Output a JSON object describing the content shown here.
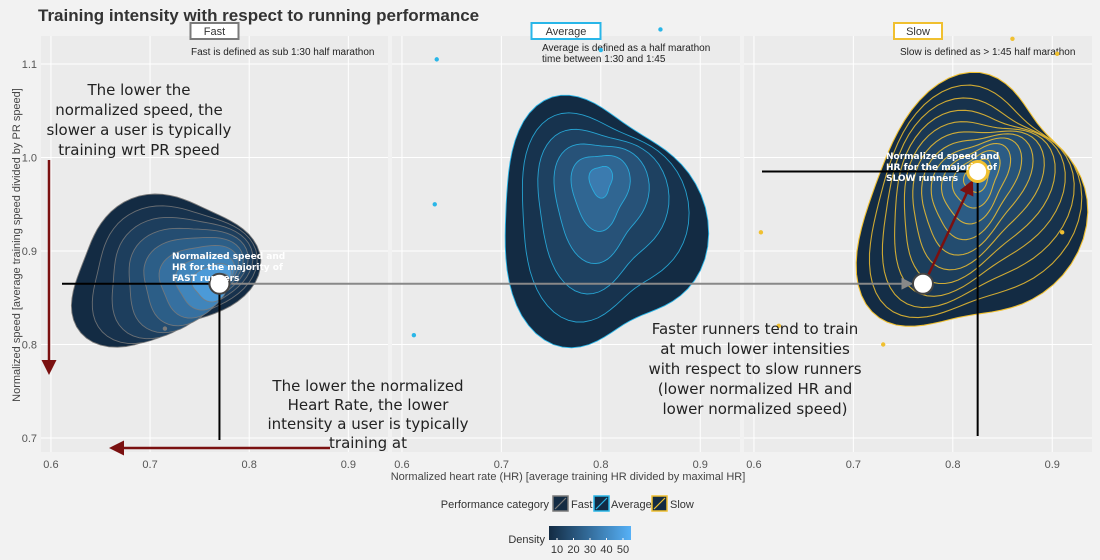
{
  "colors": {
    "fast": "#7a7a7a",
    "average": "#29b6e8",
    "slow": "#f0c030",
    "density_low": "#132b43",
    "density_high": "#56b1f7",
    "arrow_red": "#7a1010",
    "arrow_gray": "#888888",
    "background": "#f2f2f2",
    "grid": "#ffffff"
  },
  "chart_data": {
    "type": "density_contour",
    "title": "Training intensity with respect to running performance",
    "xlabel": "Normalized heart rate (HR) [average training HR divided by maximal HR]",
    "ylabel": "Normalized speed [average training speed divided by PR speed]",
    "facet_xlim": [
      0.59,
      0.94
    ],
    "ylim": [
      0.685,
      1.13
    ],
    "x_ticks": [
      "0.6",
      "0.7",
      "0.8",
      "0.9"
    ],
    "y_ticks": [
      "0.7",
      "0.8",
      "0.9",
      "1.0",
      "1.1"
    ],
    "panels": [
      {
        "name": "Fast",
        "note": "Fast is defined as sub 1:30 half marathon",
        "center": [
          0.71,
          0.88
        ],
        "peak": [
          0.77,
          0.865
        ],
        "radius": [
          0.09,
          0.078
        ],
        "tilt_deg": 22,
        "levels": 9,
        "outliers": [
          [
            0.715,
            0.817
          ]
        ]
      },
      {
        "name": "Average",
        "note_lines": [
          "Average is defined as a half marathon",
          "time between 1:30 and 1:45"
        ],
        "center": [
          0.795,
          0.93
        ],
        "peak": [
          0.8,
          0.975
        ],
        "radius": [
          0.095,
          0.137
        ],
        "tilt_deg": 8,
        "levels": 6,
        "outliers": [
          [
            0.635,
            1.105
          ],
          [
            0.633,
            0.95
          ],
          [
            0.612,
            0.81
          ],
          [
            0.8,
            1.115
          ],
          [
            0.86,
            1.137
          ]
        ]
      },
      {
        "name": "Slow",
        "note": "Slow is defined as > 1:45 half marathon",
        "center": [
          0.815,
          0.945
        ],
        "peak": [
          0.825,
          0.98
        ],
        "radius": [
          0.1,
          0.145
        ],
        "tilt_deg": -28,
        "levels": 11,
        "outliers": [
          [
            0.86,
            1.127
          ],
          [
            0.607,
            0.92
          ],
          [
            0.905,
            1.111
          ],
          [
            0.91,
            0.92
          ],
          [
            0.625,
            0.82
          ],
          [
            0.73,
            0.8
          ]
        ]
      }
    ],
    "legend": {
      "title": "Performance category",
      "entries": [
        "Fast",
        "Average",
        "Slow"
      ],
      "density_title": "Density",
      "density_ticks": [
        "10",
        "20",
        "30",
        "40",
        "50"
      ],
      "position": "bottom"
    }
  },
  "annotations": {
    "speed_note": [
      "The lower the",
      "normalized speed, the",
      "slower a user is typically",
      "training wrt PR speed"
    ],
    "hr_note": [
      "The lower the normalized",
      "Heart Rate, the lower",
      "intensity a user is typically",
      "training at"
    ],
    "faster_note": [
      "Faster runners tend to train",
      "at much lower intensities",
      "with respect to slow runners",
      "(lower normalized HR and",
      "lower normalized speed)"
    ],
    "fast_majority": [
      "Normalized speed and",
      "HR for the majority of",
      "FAST runners"
    ],
    "slow_majority": [
      "Normalized speed and",
      "HR for the majority of",
      "SLOW runners"
    ],
    "fast_point": [
      0.77,
      0.865
    ],
    "slow_mid_point": [
      0.77,
      0.865
    ],
    "slow_point": [
      0.825,
      0.985
    ]
  }
}
